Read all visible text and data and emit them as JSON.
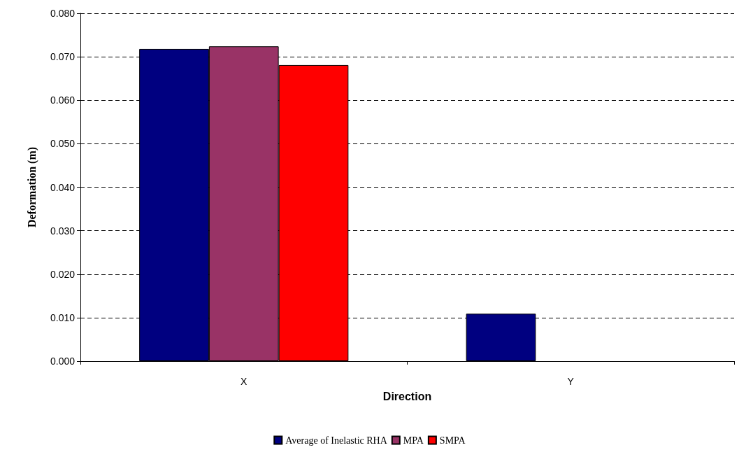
{
  "chart_data": {
    "type": "bar",
    "xlabel": "Direction",
    "ylabel": "Deformation (m)",
    "categories": [
      "X",
      "Y"
    ],
    "series": [
      {
        "name": "Average of Inelastic RHA",
        "color": "#000080",
        "values": [
          0.0718,
          0.0109
        ]
      },
      {
        "name": "MPA",
        "color": "#993366",
        "values": [
          0.0724,
          null
        ]
      },
      {
        "name": "SMPA",
        "color": "#ff0000",
        "values": [
          0.0681,
          null
        ]
      }
    ],
    "ylim": [
      0,
      0.08
    ],
    "yticks": [
      {
        "value": 0,
        "label": "0.000"
      },
      {
        "value": 0.01,
        "label": "0.010"
      },
      {
        "value": 0.02,
        "label": "0.020"
      },
      {
        "value": 0.03,
        "label": "0.030"
      },
      {
        "value": 0.04,
        "label": "0.040"
      },
      {
        "value": 0.05,
        "label": "0.050"
      },
      {
        "value": 0.06,
        "label": "0.060"
      },
      {
        "value": 0.07,
        "label": "0.070"
      },
      {
        "value": 0.08,
        "label": "0.080"
      }
    ],
    "grid": "y",
    "legend": "bottom"
  }
}
